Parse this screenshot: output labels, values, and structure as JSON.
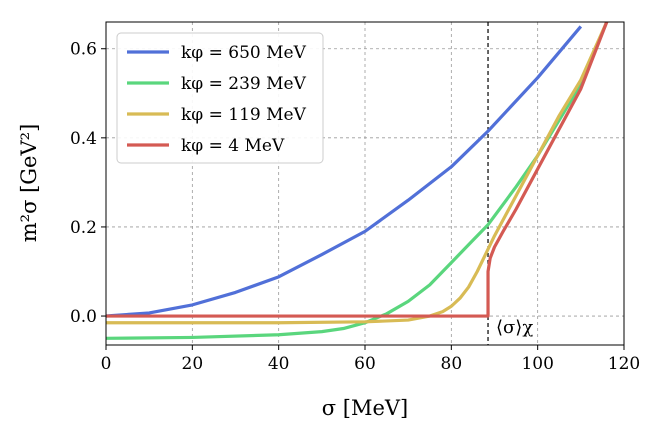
{
  "chart_data": {
    "type": "line",
    "title": "",
    "xlabel": "σ [MeV]",
    "ylabel": "m²σ [GeV²]",
    "xlim": [
      0,
      120
    ],
    "ylim": [
      -0.065,
      0.66
    ],
    "xticks": [
      0,
      20,
      40,
      60,
      80,
      100,
      120
    ],
    "xtick_labels": [
      "0",
      "20",
      "40",
      "60",
      "80",
      "100",
      "120"
    ],
    "yticks": [
      0.0,
      0.2,
      0.4,
      0.6
    ],
    "ytick_labels": [
      "0.0",
      "0.2",
      "0.4",
      "0.6"
    ],
    "grid": true,
    "legend_position": "top-left",
    "vline": {
      "x": 88.5,
      "label": "⟨σ⟩χ"
    },
    "series": [
      {
        "name": "kφ = 650 MeV",
        "color": "#5170d8",
        "x": [
          0,
          10,
          20,
          30,
          40,
          50,
          60,
          70,
          80,
          88.5,
          100,
          110
        ],
        "y": [
          0.0,
          0.007,
          0.025,
          0.053,
          0.088,
          0.138,
          0.19,
          0.26,
          0.335,
          0.415,
          0.535,
          0.65
        ]
      },
      {
        "name": "kφ = 239 MeV",
        "color": "#5ad67d",
        "x": [
          0,
          20,
          40,
          50,
          55,
          60,
          65,
          70,
          75,
          80,
          85,
          88.5,
          95,
          100,
          105,
          110,
          116
        ],
        "y": [
          -0.05,
          -0.048,
          -0.042,
          -0.035,
          -0.028,
          -0.015,
          0.005,
          0.033,
          0.07,
          0.12,
          0.17,
          0.205,
          0.29,
          0.36,
          0.44,
          0.52,
          0.66
        ]
      },
      {
        "name": "kφ = 119 MeV",
        "color": "#d8bb55",
        "x": [
          0,
          20,
          40,
          60,
          70,
          75,
          78,
          80,
          82,
          84,
          86,
          88.5,
          90,
          95,
          100,
          105,
          110,
          116
        ],
        "y": [
          -0.015,
          -0.015,
          -0.015,
          -0.013,
          -0.009,
          0.0,
          0.01,
          0.022,
          0.04,
          0.065,
          0.1,
          0.15,
          0.18,
          0.27,
          0.36,
          0.45,
          0.53,
          0.66
        ]
      },
      {
        "name": "kφ = 4 MeV",
        "color": "#d45a53",
        "x": [
          0,
          88.5,
          88.5,
          89,
          90,
          92,
          95,
          100,
          105,
          110,
          116
        ],
        "y": [
          0.0,
          0.0,
          0.1,
          0.13,
          0.155,
          0.19,
          0.24,
          0.33,
          0.42,
          0.51,
          0.66
        ]
      }
    ]
  }
}
